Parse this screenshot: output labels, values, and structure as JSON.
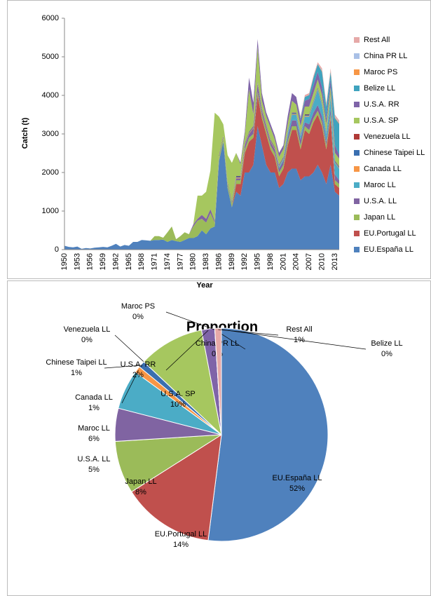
{
  "chart_data": [
    {
      "type": "area",
      "x_label": "Year",
      "y_label": "Catch (t)",
      "categories": [
        "1950",
        null,
        null,
        "1953",
        null,
        null,
        "1956",
        null,
        null,
        "1959",
        null,
        null,
        "1962",
        null,
        null,
        "1965",
        null,
        null,
        "1968",
        null,
        null,
        "1971",
        null,
        null,
        "1974",
        null,
        null,
        "1977",
        null,
        null,
        "1980",
        null,
        null,
        "1983",
        null,
        null,
        "1986",
        null,
        null,
        "1989",
        null,
        null,
        "1992",
        null,
        null,
        "1995",
        null,
        null,
        "1998",
        null,
        null,
        "2001",
        null,
        null,
        "2004",
        null,
        null,
        "2007",
        null,
        null,
        "2010",
        null,
        null,
        "2013",
        null
      ],
      "ylim": [
        0,
        6000
      ],
      "yticks": [
        0,
        1000,
        2000,
        3000,
        4000,
        5000,
        6000
      ],
      "series": [
        {
          "name": "EU.España LL",
          "color": "#4F81BD",
          "values": [
            100,
            70,
            60,
            80,
            20,
            40,
            30,
            50,
            60,
            70,
            60,
            100,
            150,
            80,
            120,
            100,
            200,
            200,
            250,
            240,
            230,
            250,
            250,
            260,
            200,
            250,
            220,
            200,
            250,
            300,
            300,
            350,
            500,
            400,
            550,
            600,
            2300,
            2800,
            1600,
            1100,
            1500,
            1400,
            2000,
            2000,
            2200,
            3200,
            2700,
            2200,
            2000,
            2000,
            1600,
            1700,
            2000,
            2100,
            2100,
            1800,
            1900,
            1900,
            2000,
            2200,
            2000,
            1700,
            2200,
            1500,
            1400
          ]
        },
        {
          "name": "EU.Portugal LL",
          "color": "#C0504D",
          "values": [
            0,
            0,
            0,
            0,
            0,
            0,
            0,
            0,
            0,
            0,
            0,
            0,
            0,
            0,
            0,
            0,
            0,
            0,
            0,
            0,
            0,
            0,
            0,
            0,
            0,
            0,
            0,
            0,
            0,
            0,
            0,
            0,
            0,
            0,
            0,
            0,
            0,
            0,
            0,
            0,
            200,
            300,
            500,
            800,
            700,
            800,
            700,
            800,
            600,
            400,
            300,
            400,
            700,
            1000,
            1000,
            800,
            1200,
            1100,
            1300,
            1300,
            1200,
            900,
            1200,
            200,
            200
          ]
        },
        {
          "name": "Japan LL",
          "color": "#9BBB59",
          "values": [
            0,
            0,
            0,
            0,
            0,
            0,
            0,
            0,
            0,
            0,
            0,
            0,
            0,
            0,
            0,
            0,
            0,
            0,
            0,
            0,
            0,
            100,
            100,
            50,
            250,
            350,
            50,
            150,
            200,
            100,
            300,
            400,
            300,
            300,
            400,
            100,
            100,
            100,
            100,
            100,
            100,
            100,
            100,
            100,
            100,
            100,
            100,
            100,
            100,
            100,
            100,
            100,
            100,
            100,
            100,
            100,
            100,
            100,
            100,
            100,
            100,
            100,
            100,
            100,
            100
          ]
        },
        {
          "name": "U.S.A. LL",
          "color": "#8064A2",
          "values": [
            0,
            0,
            0,
            0,
            0,
            0,
            0,
            0,
            0,
            0,
            0,
            0,
            0,
            0,
            0,
            0,
            0,
            0,
            0,
            0,
            0,
            0,
            0,
            0,
            0,
            0,
            0,
            0,
            0,
            0,
            50,
            50,
            100,
            100,
            100,
            50,
            50,
            50,
            50,
            50,
            50,
            50,
            100,
            100,
            150,
            200,
            100,
            100,
            100,
            100,
            100,
            100,
            100,
            150,
            150,
            150,
            100,
            150,
            150,
            150,
            150,
            100,
            150,
            150,
            100
          ]
        },
        {
          "name": "Maroc LL",
          "color": "#4BACC6",
          "values": [
            0,
            0,
            0,
            0,
            0,
            0,
            0,
            0,
            0,
            0,
            0,
            0,
            0,
            0,
            0,
            0,
            0,
            0,
            0,
            0,
            0,
            0,
            0,
            0,
            0,
            0,
            0,
            0,
            0,
            0,
            0,
            0,
            0,
            0,
            0,
            0,
            0,
            0,
            0,
            0,
            0,
            0,
            0,
            0,
            0,
            0,
            0,
            0,
            0,
            0,
            50,
            50,
            100,
            150,
            150,
            100,
            150,
            200,
            250,
            400,
            300,
            200,
            300,
            300,
            300
          ]
        },
        {
          "name": "Canada LL",
          "color": "#F79646",
          "values": [
            0,
            0,
            0,
            0,
            0,
            0,
            0,
            0,
            0,
            0,
            0,
            0,
            0,
            0,
            0,
            0,
            0,
            0,
            0,
            0,
            0,
            0,
            0,
            0,
            0,
            0,
            0,
            0,
            0,
            0,
            0,
            0,
            0,
            0,
            0,
            0,
            0,
            0,
            0,
            0,
            20,
            20,
            20,
            20,
            20,
            20,
            20,
            20,
            20,
            20,
            20,
            20,
            20,
            20,
            20,
            20,
            20,
            20,
            20,
            20,
            20,
            20,
            20,
            20,
            20
          ]
        },
        {
          "name": "Chinese Taipei LL",
          "color": "#3A6FB0",
          "values": [
            0,
            0,
            0,
            0,
            0,
            0,
            0,
            0,
            0,
            0,
            0,
            0,
            0,
            0,
            0,
            0,
            0,
            0,
            0,
            0,
            0,
            0,
            0,
            0,
            0,
            0,
            0,
            0,
            0,
            0,
            0,
            0,
            0,
            0,
            0,
            0,
            0,
            0,
            0,
            0,
            30,
            30,
            30,
            30,
            30,
            30,
            30,
            30,
            30,
            30,
            30,
            30,
            30,
            30,
            30,
            30,
            30,
            30,
            30,
            30,
            30,
            30,
            30,
            30,
            30
          ]
        },
        {
          "name": "Venezuela LL",
          "color": "#B03A36",
          "values": [
            0,
            0,
            0,
            0,
            0,
            0,
            0,
            0,
            0,
            0,
            0,
            0,
            0,
            0,
            0,
            0,
            0,
            0,
            0,
            0,
            0,
            0,
            0,
            0,
            0,
            0,
            0,
            0,
            0,
            0,
            0,
            0,
            0,
            0,
            0,
            0,
            0,
            0,
            0,
            0,
            10,
            10,
            10,
            10,
            10,
            10,
            10,
            10,
            10,
            10,
            10,
            10,
            10,
            10,
            10,
            10,
            10,
            10,
            10,
            10,
            10,
            10,
            10,
            10,
            10
          ]
        },
        {
          "name": "U.S.A. SP",
          "color": "#A6C75F",
          "values": [
            0,
            0,
            0,
            0,
            0,
            0,
            0,
            0,
            0,
            0,
            0,
            0,
            0,
            0,
            0,
            0,
            0,
            0,
            0,
            0,
            0,
            0,
            0,
            0,
            0,
            0,
            0,
            0,
            0,
            0,
            0,
            600,
            500,
            700,
            1000,
            2800,
            1000,
            300,
            700,
            1000,
            600,
            300,
            200,
            1100,
            300,
            900,
            200,
            200,
            300,
            200,
            200,
            200,
            200,
            300,
            200,
            200,
            200,
            200,
            200,
            200,
            200,
            200,
            200,
            200,
            200
          ]
        },
        {
          "name": "U.S.A. RR",
          "color": "#7F64A8",
          "values": [
            0,
            0,
            0,
            0,
            0,
            0,
            0,
            0,
            0,
            0,
            0,
            0,
            0,
            0,
            0,
            0,
            0,
            0,
            0,
            0,
            0,
            0,
            0,
            0,
            0,
            0,
            0,
            0,
            0,
            0,
            0,
            0,
            0,
            0,
            0,
            0,
            0,
            0,
            0,
            0,
            0,
            50,
            100,
            300,
            300,
            200,
            200,
            100,
            100,
            100,
            100,
            100,
            200,
            200,
            200,
            150,
            150,
            200,
            200,
            200,
            200,
            150,
            200,
            200,
            100
          ]
        },
        {
          "name": "Belize LL",
          "color": "#3FA3BE",
          "values": [
            0,
            0,
            0,
            0,
            0,
            0,
            0,
            0,
            0,
            0,
            0,
            0,
            0,
            0,
            0,
            0,
            0,
            0,
            0,
            0,
            0,
            0,
            0,
            0,
            0,
            0,
            0,
            0,
            0,
            0,
            0,
            0,
            0,
            0,
            0,
            0,
            0,
            0,
            0,
            0,
            0,
            0,
            0,
            0,
            0,
            0,
            0,
            0,
            0,
            0,
            0,
            0,
            0,
            0,
            0,
            50,
            100,
            100,
            200,
            200,
            400,
            300,
            200,
            700,
            800
          ]
        },
        {
          "name": "Maroc PS",
          "color": "#F79646",
          "values": [
            0,
            0,
            0,
            0,
            0,
            0,
            0,
            0,
            0,
            0,
            0,
            0,
            0,
            0,
            0,
            0,
            0,
            0,
            0,
            0,
            0,
            0,
            0,
            0,
            0,
            0,
            0,
            0,
            0,
            0,
            0,
            0,
            0,
            0,
            0,
            0,
            0,
            0,
            0,
            0,
            0,
            0,
            0,
            0,
            0,
            0,
            0,
            0,
            0,
            0,
            0,
            0,
            0,
            0,
            0,
            0,
            0,
            0,
            0,
            0,
            20,
            20,
            20,
            20,
            20
          ]
        },
        {
          "name": "China PR LL",
          "color": "#A9C0E6",
          "values": [
            0,
            0,
            0,
            0,
            0,
            0,
            0,
            0,
            0,
            0,
            0,
            0,
            0,
            0,
            0,
            0,
            0,
            0,
            0,
            0,
            0,
            0,
            0,
            0,
            0,
            0,
            0,
            0,
            0,
            0,
            0,
            0,
            0,
            0,
            0,
            0,
            0,
            0,
            0,
            0,
            0,
            0,
            0,
            0,
            0,
            0,
            0,
            0,
            0,
            0,
            0,
            0,
            0,
            0,
            0,
            0,
            0,
            0,
            0,
            0,
            20,
            20,
            20,
            20,
            20
          ]
        },
        {
          "name": "Rest All",
          "color": "#E6A9A8",
          "values": [
            0,
            0,
            0,
            0,
            0,
            0,
            0,
            0,
            0,
            0,
            0,
            0,
            0,
            0,
            0,
            0,
            0,
            0,
            0,
            0,
            0,
            0,
            0,
            0,
            0,
            0,
            0,
            0,
            0,
            0,
            0,
            0,
            0,
            0,
            0,
            0,
            0,
            0,
            0,
            0,
            0,
            0,
            0,
            0,
            0,
            0,
            0,
            0,
            0,
            0,
            0,
            0,
            0,
            0,
            0,
            50,
            50,
            50,
            50,
            50,
            50,
            50,
            50,
            50,
            50
          ]
        }
      ]
    },
    {
      "type": "pie",
      "title": "Proportion",
      "categories": [
        "EU.España LL",
        "EU.Portugal LL",
        "Japan LL",
        "U.S.A. LL",
        "Maroc LL",
        "Canada LL",
        "Chinese Taipei LL",
        "Venezuela LL",
        "U.S.A. SP",
        "U.S.A. RR",
        "Maroc PS",
        "China PR LL",
        "Rest All",
        "Belize LL"
      ],
      "values": [
        52,
        14,
        8,
        5,
        6,
        1,
        1,
        0,
        10,
        2,
        0,
        0,
        1,
        0
      ],
      "value_labels": [
        "52%",
        "14%",
        "8%",
        "5%",
        "6%",
        "1%",
        "1%",
        "0%",
        "10%",
        "2%",
        "0%",
        "0%",
        "1%",
        "0%"
      ],
      "colors": [
        "#4F81BD",
        "#C0504D",
        "#9BBB59",
        "#8064A2",
        "#4BACC6",
        "#F79646",
        "#3A6FB0",
        "#B03A36",
        "#A6C75F",
        "#7F64A8",
        "#F79646",
        "#A9C0E6",
        "#E6A9A8",
        "#3FA3BE"
      ]
    }
  ]
}
